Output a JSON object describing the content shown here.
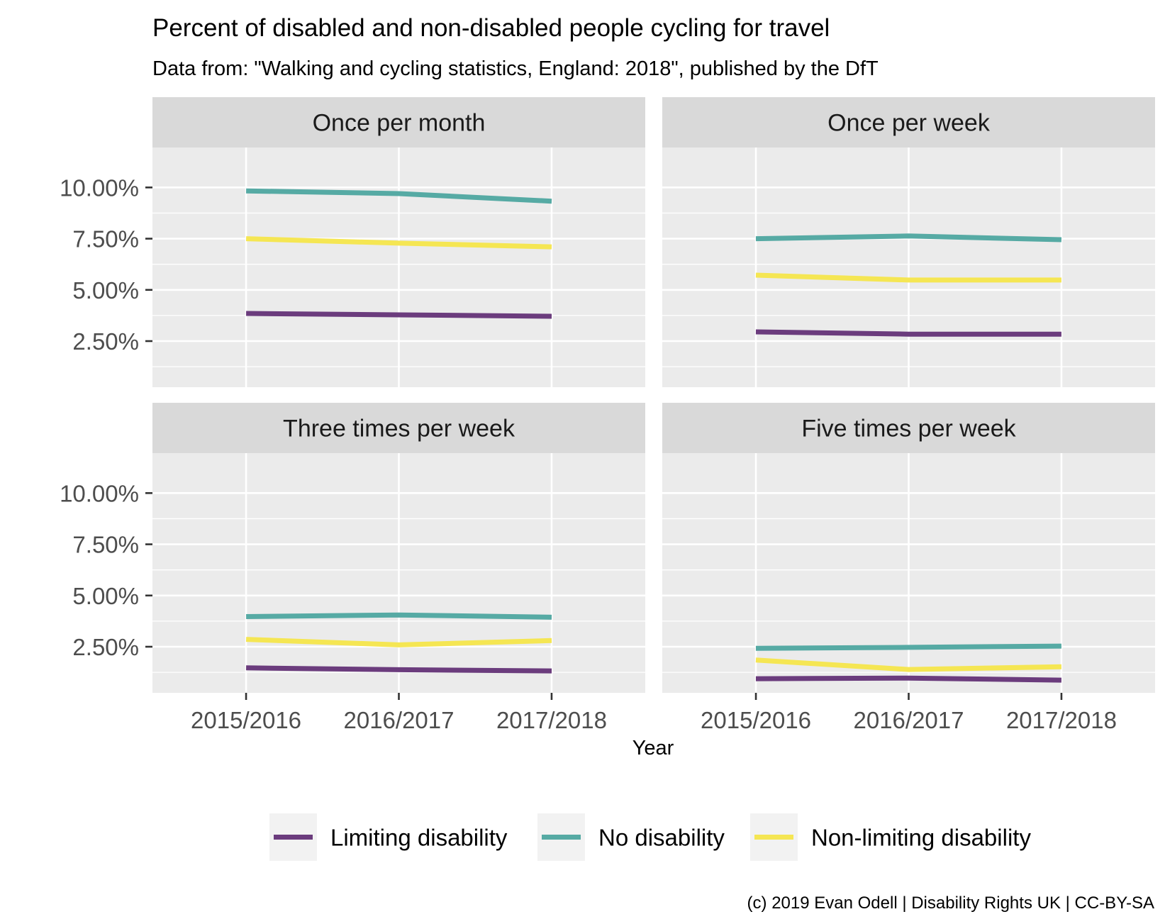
{
  "chart_data": {
    "type": "line",
    "title": "Percent of disabled and non-disabled people cycling for travel",
    "subtitle": "Data from: \"Walking and cycling statistics, England: 2018\", published by the DfT",
    "xlabel": "Year",
    "ylabel": "",
    "caption": "(c) 2019 Evan Odell | Disability Rights UK | CC-BY-SA",
    "x": [
      "2015/2016",
      "2016/2017",
      "2017/2018"
    ],
    "ylim": [
      0.0025,
      0.1195
    ],
    "yticks": [
      0.025,
      0.05,
      0.075,
      0.1
    ],
    "ytick_labels": [
      "2.50%",
      "5.00%",
      "7.50%",
      "10.00%"
    ],
    "grid": true,
    "legend_position": "bottom",
    "legend": [
      {
        "name": "Limiting disability",
        "color": "#6b3c7d"
      },
      {
        "name": "No disability",
        "color": "#56aaa4"
      },
      {
        "name": "Non-limiting disability",
        "color": "#f5e653"
      }
    ],
    "facets": [
      {
        "label": "Once per month",
        "series": [
          {
            "name": "Limiting disability",
            "values": [
              0.0385,
              0.0378,
              0.0371
            ]
          },
          {
            "name": "No disability",
            "values": [
              0.0983,
              0.097,
              0.0933
            ]
          },
          {
            "name": "Non-limiting disability",
            "values": [
              0.075,
              0.0728,
              0.071
            ]
          }
        ]
      },
      {
        "label": "Once per week",
        "series": [
          {
            "name": "Limiting disability",
            "values": [
              0.0295,
              0.0284,
              0.0284
            ]
          },
          {
            "name": "No disability",
            "values": [
              0.075,
              0.0763,
              0.0745
            ]
          },
          {
            "name": "Non-limiting disability",
            "values": [
              0.0572,
              0.0548,
              0.0548
            ]
          }
        ]
      },
      {
        "label": "Three times per week",
        "series": [
          {
            "name": "Limiting disability",
            "values": [
              0.0147,
              0.0138,
              0.0132
            ]
          },
          {
            "name": "No disability",
            "values": [
              0.0397,
              0.0405,
              0.0394
            ]
          },
          {
            "name": "Non-limiting disability",
            "values": [
              0.0286,
              0.0259,
              0.028
            ]
          }
        ]
      },
      {
        "label": "Five times per week",
        "series": [
          {
            "name": "Limiting disability",
            "values": [
              0.0094,
              0.0097,
              0.0087
            ]
          },
          {
            "name": "No disability",
            "values": [
              0.0242,
              0.0247,
              0.0253
            ]
          },
          {
            "name": "Non-limiting disability",
            "values": [
              0.0185,
              0.0139,
              0.0152
            ]
          }
        ]
      }
    ]
  }
}
